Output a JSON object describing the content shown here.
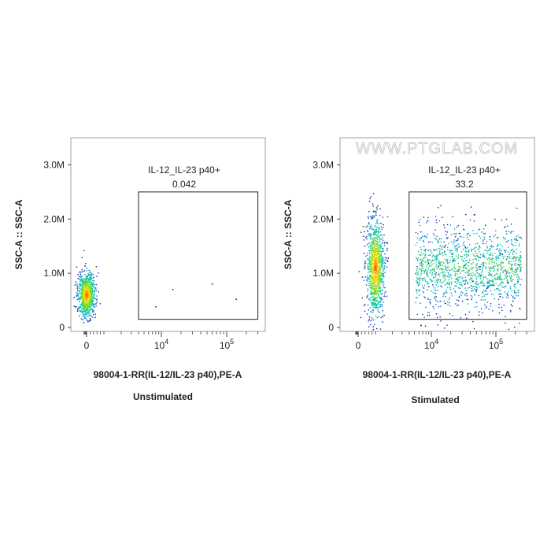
{
  "chart_data": [
    {
      "type": "scatter",
      "caption": "Unstimulated",
      "xlabel": "98004-1-RR(IL-12/IL-23 p40),PE-A",
      "ylabel": "SSC-A :: SSC-A",
      "ylim": [
        0,
        3500000
      ],
      "y_ticks": [
        {
          "value": 0,
          "label": "0"
        },
        {
          "value": 1000000,
          "label": "1.0M"
        },
        {
          "value": 2000000,
          "label": "2.0M"
        },
        {
          "value": 3000000,
          "label": "3.0M"
        }
      ],
      "x_ticks": [
        {
          "value": 0,
          "base": "0",
          "exp": ""
        },
        {
          "value": 10000,
          "base": "10",
          "exp": "4"
        },
        {
          "value": 100000,
          "base": "10",
          "exp": "5"
        }
      ],
      "gate": {
        "name": "IL-12_IL-23 p40+",
        "percent": "0.042",
        "x_range": [
          4000,
          300000
        ],
        "y_range": [
          150000,
          2500000
        ]
      },
      "populations": [
        {
          "name": "negative",
          "center_x": 0,
          "center_y": 600000,
          "spread_x": "narrow",
          "spread_y": "narrow",
          "density": "dense"
        }
      ],
      "watermark": ""
    },
    {
      "type": "scatter",
      "caption": "Stimulated",
      "xlabel": "98004-1-RR(IL-12/IL-23 p40),PE-A",
      "ylabel": "SSC-A :: SSC-A",
      "ylim": [
        0,
        3500000
      ],
      "y_ticks": [
        {
          "value": 0,
          "label": "0"
        },
        {
          "value": 1000000,
          "label": "1.0M"
        },
        {
          "value": 2000000,
          "label": "2.0M"
        },
        {
          "value": 3000000,
          "label": "3.0M"
        }
      ],
      "x_ticks": [
        {
          "value": 0,
          "base": "0",
          "exp": ""
        },
        {
          "value": 10000,
          "base": "10",
          "exp": "4"
        },
        {
          "value": 100000,
          "base": "10",
          "exp": "5"
        }
      ],
      "gate": {
        "name": "IL-12_IL-23 p40+",
        "percent": "33.2",
        "x_range": [
          4000,
          300000
        ],
        "y_range": [
          150000,
          2500000
        ]
      },
      "populations": [
        {
          "name": "negative",
          "center_x": 1000,
          "center_y": 1100000,
          "spread_x": "narrow",
          "spread_y": "tall",
          "density": "dense"
        },
        {
          "name": "positive",
          "center_x": 20000,
          "center_y": 1100000,
          "spread_x": "wide",
          "spread_y": "wide",
          "density": "sparse"
        }
      ],
      "watermark": "WWW.PTGLAB.COM"
    }
  ],
  "colors": {
    "axis": "#444444",
    "gate": "#222222",
    "density_low": "#1a1aa0",
    "density_mid": "#00c8a0",
    "density_high": "#ff2a00",
    "watermark": "#c8c8c8"
  }
}
